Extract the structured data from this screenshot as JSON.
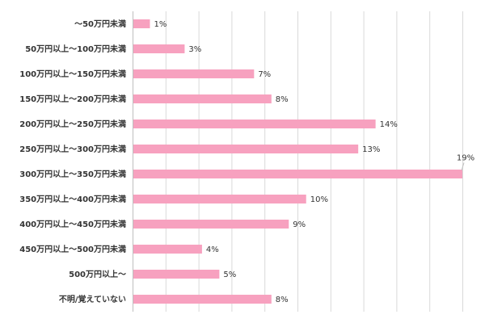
{
  "chart_data": {
    "type": "bar",
    "orientation": "horizontal",
    "categories": [
      "～50万円未満",
      "50万円以上～100万円未満",
      "100万円以上～150万円未満",
      "150万円以上～200万円未満",
      "200万円以上～250万円未満",
      "250万円以上～300万円未満",
      "300万円以上～350万円未満",
      "350万円以上～400万円未満",
      "400万円以上～450万円未満",
      "450万円以上～500万円未満",
      "500万円以上～",
      "不明/覚えていない"
    ],
    "values": [
      1,
      3,
      7,
      8,
      14,
      13,
      19,
      10,
      9,
      4,
      5,
      8
    ],
    "value_labels": [
      "1%",
      "3%",
      "7%",
      "8%",
      "14%",
      "13%",
      "19%",
      "10%",
      "9%",
      "4%",
      "5%",
      "8%"
    ],
    "xlim": [
      0,
      19
    ],
    "title": "",
    "xlabel": "",
    "ylabel": "",
    "grid": true,
    "legend": "none",
    "bar_color": "#f7a1bf"
  }
}
